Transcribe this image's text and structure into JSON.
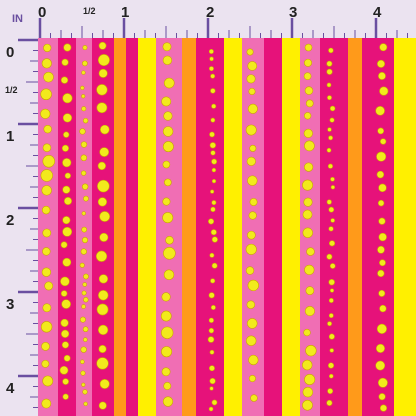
{
  "ruler": {
    "unit": "IN",
    "top": [
      "0",
      "1/2",
      "1",
      "2",
      "3",
      "4"
    ],
    "left": [
      "0",
      "1/2",
      "1",
      "2",
      "3",
      "4"
    ]
  }
}
